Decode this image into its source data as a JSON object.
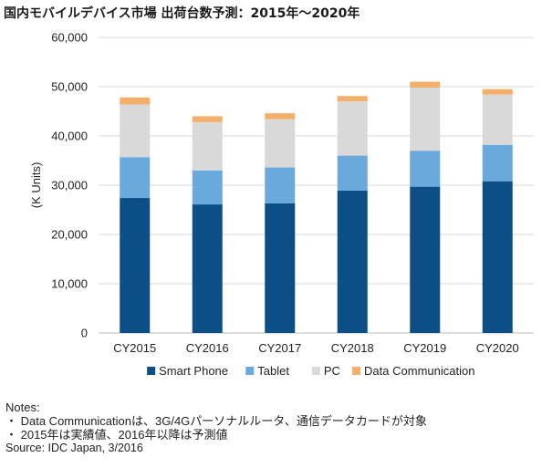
{
  "title": "国内モバイルデバイス市場 出荷台数予測：2015年～2020年",
  "chart_data": {
    "type": "bar",
    "stacked": true,
    "categories": [
      "CY2015",
      "CY2016",
      "CY2017",
      "CY2018",
      "CY2019",
      "CY2020"
    ],
    "series": [
      {
        "name": "Smart Phone",
        "color": "#0b4f86",
        "values": [
          27400,
          26100,
          26300,
          28900,
          29700,
          30800
        ]
      },
      {
        "name": "Tablet",
        "color": "#6aa9dc",
        "values": [
          8300,
          6900,
          7300,
          7100,
          7300,
          7400
        ]
      },
      {
        "name": "PC",
        "color": "#d9d9d9",
        "values": [
          10700,
          9800,
          9800,
          11000,
          12800,
          10200
        ]
      },
      {
        "name": "Data Communication",
        "color": "#f4b06a",
        "values": [
          1400,
          1200,
          1200,
          1100,
          1200,
          1100
        ]
      }
    ],
    "ylabel": "(K Units)",
    "ylim": [
      0,
      60000
    ],
    "yticks": [
      0,
      10000,
      20000,
      30000,
      40000,
      50000,
      60000
    ],
    "ytick_labels": [
      "0",
      "10,000",
      "20,000",
      "30,000",
      "40,000",
      "50,000",
      "60,000"
    ],
    "grid": true,
    "legend_position": "bottom"
  },
  "notes": {
    "heading": "Notes:",
    "items": [
      "・ Data Communicationは、3G/4Gパーソナルルータ、通信データカードが対象",
      "・ 2015年は実績値、2016年以降は予測値"
    ],
    "source": "Source: IDC Japan, 3/2016"
  }
}
